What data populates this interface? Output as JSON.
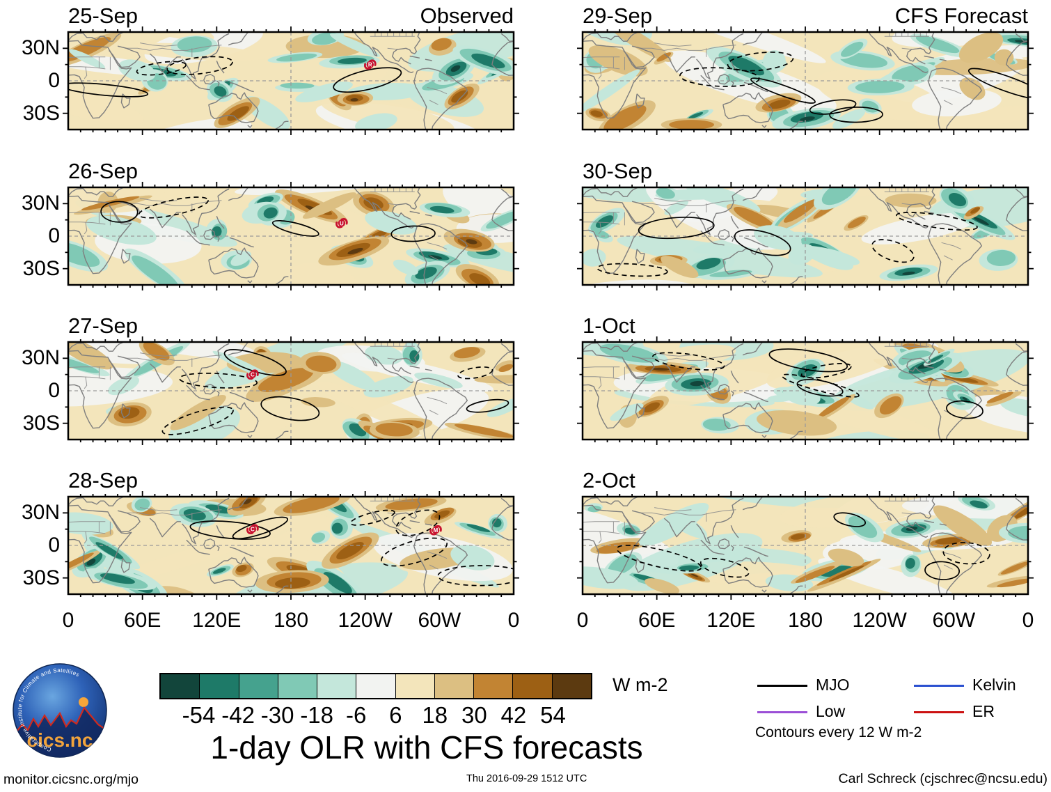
{
  "figure": {
    "title": "1-day OLR with CFS forecasts"
  },
  "panels": [
    {
      "date": "25-Sep",
      "corner": "Observed",
      "col": 0,
      "row": 0,
      "cyclones": [
        {
          "letter": "R",
          "lon": 244,
          "lat": 15
        }
      ]
    },
    {
      "date": "26-Sep",
      "col": 0,
      "row": 1,
      "cyclones": [
        {
          "letter": "U",
          "lon": 221,
          "lat": 12
        }
      ]
    },
    {
      "date": "27-Sep",
      "col": 0,
      "row": 2,
      "cyclones": [
        {
          "letter": "C",
          "lon": 149,
          "lat": 15
        }
      ]
    },
    {
      "date": "28-Sep",
      "col": 0,
      "row": 3,
      "cyclones": [
        {
          "letter": "C",
          "lon": 149,
          "lat": 15
        },
        {
          "letter": "M",
          "lon": 297,
          "lat": 14
        }
      ]
    },
    {
      "date": "29-Sep",
      "corner": "CFS Forecast",
      "col": 1,
      "row": 0,
      "cyclones": []
    },
    {
      "date": "30-Sep",
      "col": 1,
      "row": 1,
      "cyclones": []
    },
    {
      "date": "1-Oct",
      "col": 1,
      "row": 2,
      "cyclones": []
    },
    {
      "date": "2-Oct",
      "col": 1,
      "row": 3,
      "cyclones": []
    }
  ],
  "axes": {
    "y_ticks": [
      "30N",
      "0",
      "30S"
    ],
    "x_ticks": [
      "0",
      "60E",
      "120E",
      "180",
      "120W",
      "60W",
      "0"
    ]
  },
  "colorbar": {
    "unit": "W m-2",
    "tick_labels": [
      "-54",
      "-42",
      "-30",
      "-18",
      "-6",
      "6",
      "18",
      "30",
      "42",
      "54"
    ],
    "colors": [
      "#12453b",
      "#1e7a68",
      "#45a28e",
      "#80c9b5",
      "#c4e7db",
      "#f2f3f1",
      "#f3e5bb",
      "#dcbf82",
      "#c28433",
      "#9d6014",
      "#5c3a10"
    ]
  },
  "legend": {
    "items": [
      {
        "label": "MJO",
        "color": "#000000"
      },
      {
        "label": "Kelvin",
        "color": "#2b50d0"
      },
      {
        "label": "Low",
        "color": "#9b4fd6"
      },
      {
        "label": "ER",
        "color": "#cc1111"
      }
    ],
    "note": "Contours every 12 W m-2"
  },
  "logo": {
    "ring_text": "Cooperative Institute for Climate and Satellites",
    "name": "cics.nc"
  },
  "footer": {
    "left": "monitor.cicsnc.org/mjo",
    "center": "Thu 2016-09-29 1512 UTC",
    "right": "Carl Schreck (cjschrec@ncsu.edu)"
  },
  "chart_data": {
    "type": "heatmap",
    "title": "1-day OLR with CFS forecasts",
    "units": "W m-2",
    "colorbar_levels": [
      -54,
      -42,
      -30,
      -18,
      -6,
      6,
      18,
      30,
      42,
      54
    ],
    "colorbar_colors": [
      "#12453b",
      "#1e7a68",
      "#45a28e",
      "#80c9b5",
      "#c4e7db",
      "#f2f3f1",
      "#f3e5bb",
      "#dcbf82",
      "#c28433",
      "#9d6014",
      "#5c3a10"
    ],
    "contour_interval": 12,
    "contour_waves": [
      "MJO",
      "Kelvin",
      "Low",
      "ER"
    ],
    "x_axis": {
      "ticks": [
        "0",
        "60E",
        "120E",
        "180",
        "120W",
        "60W",
        "0"
      ],
      "range_deg_lon": [
        0,
        360
      ]
    },
    "y_axis": {
      "ticks": [
        "30N",
        "0",
        "30S"
      ],
      "range_deg_lat": [
        -45,
        45
      ]
    },
    "panels": [
      {
        "date": "25-Sep",
        "kind": "Observed",
        "tropical_cyclones": [
          {
            "label": "R",
            "lon_deg_e": 244,
            "lat_deg_n": 15
          }
        ]
      },
      {
        "date": "26-Sep",
        "kind": "Observed",
        "tropical_cyclones": [
          {
            "label": "U",
            "lon_deg_e": 221,
            "lat_deg_n": 12
          }
        ]
      },
      {
        "date": "27-Sep",
        "kind": "Observed",
        "tropical_cyclones": [
          {
            "label": "C",
            "lon_deg_e": 149,
            "lat_deg_n": 15
          }
        ]
      },
      {
        "date": "28-Sep",
        "kind": "Observed",
        "tropical_cyclones": [
          {
            "label": "C",
            "lon_deg_e": 149,
            "lat_deg_n": 15
          },
          {
            "label": "M",
            "lon_deg_e": 297,
            "lat_deg_n": 14
          }
        ]
      },
      {
        "date": "29-Sep",
        "kind": "CFS Forecast",
        "tropical_cyclones": []
      },
      {
        "date": "30-Sep",
        "kind": "CFS Forecast",
        "tropical_cyclones": []
      },
      {
        "date": "1-Oct",
        "kind": "CFS Forecast",
        "tropical_cyclones": []
      },
      {
        "date": "2-Oct",
        "kind": "CFS Forecast",
        "tropical_cyclones": []
      }
    ]
  }
}
